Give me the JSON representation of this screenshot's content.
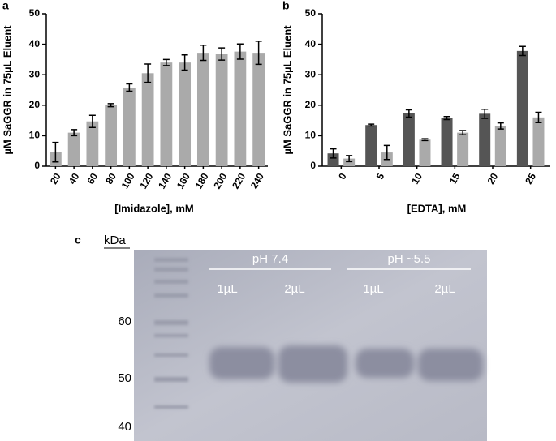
{
  "chart_data": [
    {
      "type": "bar",
      "panel": "a",
      "y_label": "µM SaGGR in 75µL Eluent",
      "x_label": "[Imidazole], mM",
      "categories": [
        "20",
        "40",
        "60",
        "80",
        "100",
        "120",
        "140",
        "160",
        "180",
        "200",
        "220",
        "240"
      ],
      "series": [
        {
          "color": "#aaaaaa",
          "values": [
            4.6,
            11,
            14.7,
            20,
            25.8,
            30.5,
            34,
            34,
            37.2,
            36.8,
            37.6,
            37.2
          ],
          "errors": [
            3.2,
            1,
            2,
            0.5,
            1.2,
            3,
            1,
            2.5,
            2.5,
            2,
            2.5,
            3.8
          ]
        }
      ],
      "ylim": [
        0,
        50
      ],
      "yticks": [
        0,
        10,
        20,
        30,
        40,
        50
      ]
    },
    {
      "type": "bar",
      "panel": "b",
      "y_label": "µM SaGGR in 75µL Eluent",
      "x_label": "[EDTA], mM",
      "categories": [
        "0",
        "5",
        "10",
        "15",
        "20",
        "25"
      ],
      "series": [
        {
          "color": "#555555",
          "values": [
            4.2,
            13.5,
            17.3,
            15.8,
            17.2,
            37.8
          ],
          "errors": [
            1.5,
            0.3,
            1.2,
            0.5,
            1.5,
            1.5
          ]
        },
        {
          "color": "#aaaaaa",
          "values": [
            2.5,
            4.5,
            8.7,
            11,
            13.2,
            16
          ],
          "errors": [
            1,
            2.3,
            0.3,
            0.7,
            1,
            1.7
          ]
        }
      ],
      "ylim": [
        0,
        50
      ],
      "yticks": [
        0,
        10,
        20,
        30,
        40,
        50
      ]
    }
  ],
  "gel": {
    "panel": "c",
    "unit": "kDa",
    "markers": [
      60,
      50,
      40
    ],
    "groups": [
      {
        "name": "pH 7.4",
        "lanes": [
          "1µL",
          "2µL"
        ]
      },
      {
        "name": "pH ~5.5",
        "lanes": [
          "1µL",
          "2µL"
        ]
      }
    ]
  }
}
